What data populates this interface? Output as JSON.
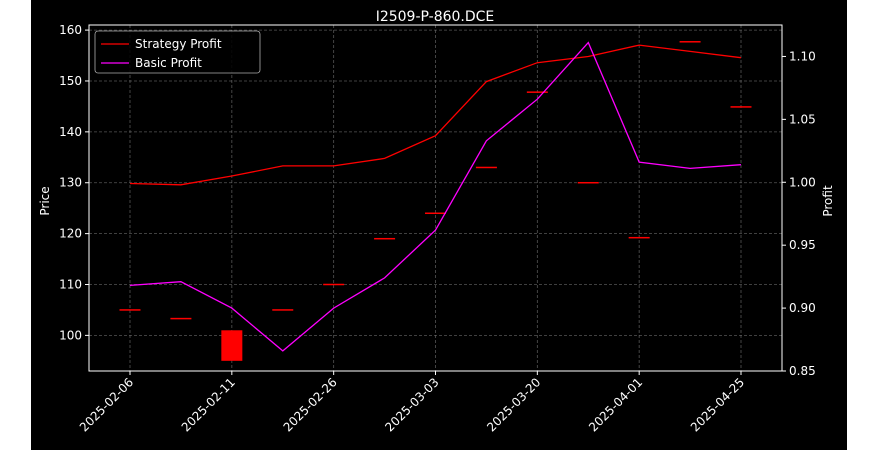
{
  "chart_data": {
    "type": "line",
    "title": "I2509-P-860.DCE",
    "ylabel": "Price",
    "y2label": "Profit",
    "x_tick_labels": [
      "2025-02-06",
      "2025-02-11",
      "2025-02-26",
      "2025-03-03",
      "2025-03-20",
      "2025-04-01",
      "2025-04-25"
    ],
    "ylim": [
      93,
      161
    ],
    "y_ticks": [
      100,
      110,
      120,
      130,
      140,
      150,
      160
    ],
    "y2lim": [
      0.85,
      1.125
    ],
    "y2_ticks": [
      "0.85",
      "0.90",
      "0.95",
      "1.00",
      "1.05",
      "1.10"
    ],
    "grid": true,
    "legend_position": "upper-left",
    "series": [
      {
        "name": "Strategy Profit",
        "axis": "right",
        "color": "#ff0000",
        "values": [
          0.999,
          0.998,
          1.005,
          1.013,
          1.013,
          1.019,
          1.037,
          1.08,
          1.095,
          1.1,
          1.109,
          1.104,
          1.099
        ]
      },
      {
        "name": "Basic Profit",
        "axis": "right",
        "color": "#ff00ff",
        "values": [
          0.918,
          0.921,
          0.9,
          0.866,
          0.9,
          0.924,
          0.962,
          1.033,
          1.066,
          1.111,
          1.016,
          1.011,
          1.014
        ]
      }
    ],
    "candles": {
      "axis": "left",
      "color": "#ff0000",
      "values": [
        {
          "open": 105,
          "close": 105
        },
        {
          "open": 103.3,
          "close": 103.3
        },
        {
          "open": 101,
          "close": 95
        },
        {
          "open": 105,
          "close": 105
        },
        {
          "open": 110,
          "close": 110
        },
        {
          "open": 119,
          "close": 119
        },
        {
          "open": 124,
          "close": 124
        },
        {
          "open": 133,
          "close": 133
        },
        {
          "open": 147.8,
          "close": 147.8
        },
        {
          "open": 130,
          "close": 130
        },
        {
          "open": 119.2,
          "close": 119.2
        },
        {
          "open": 157.7,
          "close": 157.7
        },
        {
          "open": 144.9,
          "close": 144.9
        }
      ]
    }
  }
}
